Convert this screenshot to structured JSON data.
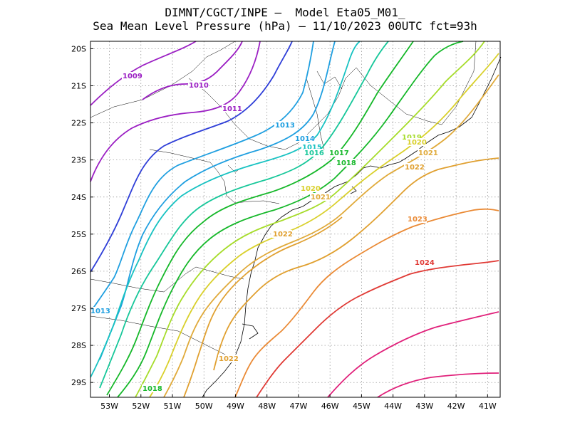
{
  "title": {
    "line1": "DIMNT/CGCT/INPE –  Model Eta05_M01_",
    "line2": "Sea Mean Level Pressure (hPa) – 11/10/2023 00UTC fct=93h"
  },
  "map_data": {
    "type": "contour",
    "variable": "Sea Mean Level Pressure",
    "units": "hPa",
    "lon_range": [
      -53.6,
      -40.6
    ],
    "lat_range": [
      -29.4,
      -19.8
    ],
    "x_ticks": [
      "53W",
      "52W",
      "51W",
      "50W",
      "49W",
      "48W",
      "47W",
      "46W",
      "45W",
      "44W",
      "43W",
      "42W",
      "41W"
    ],
    "y_ticks": [
      "20S",
      "21S",
      "22S",
      "23S",
      "24S",
      "25S",
      "26S",
      "27S",
      "28S",
      "29S"
    ],
    "grid": true,
    "contour_labels": [
      {
        "text": "1009",
        "color": "#9b1fc3"
      },
      {
        "text": "1010",
        "color": "#9b1fc3"
      },
      {
        "text": "1011",
        "color": "#9b1fc3"
      },
      {
        "text": "1013",
        "color": "#1f9fe0"
      },
      {
        "text": "1014",
        "color": "#1f9fe0"
      },
      {
        "text": "1015",
        "color": "#17c2c2"
      },
      {
        "text": "1016",
        "color": "#17c79a"
      },
      {
        "text": "1017",
        "color": "#16b82a"
      },
      {
        "text": "1018",
        "color": "#16b82a"
      },
      {
        "text": "1019",
        "color": "#a6dc2a"
      },
      {
        "text": "1020",
        "color": "#d9d02c"
      },
      {
        "text": "1020",
        "color": "#d9d02c"
      },
      {
        "text": "1021",
        "color": "#e0aa3a"
      },
      {
        "text": "1021",
        "color": "#e0aa3a"
      },
      {
        "text": "1022",
        "color": "#e0a030"
      },
      {
        "text": "1022",
        "color": "#e0a030"
      },
      {
        "text": "1022",
        "color": "#e0a030"
      },
      {
        "text": "1023",
        "color": "#ea8a35"
      },
      {
        "text": "1024",
        "color": "#e03a35"
      },
      {
        "text": "1013",
        "color": "#1f9fe0"
      },
      {
        "text": "1018",
        "color": "#16b82a"
      }
    ]
  }
}
